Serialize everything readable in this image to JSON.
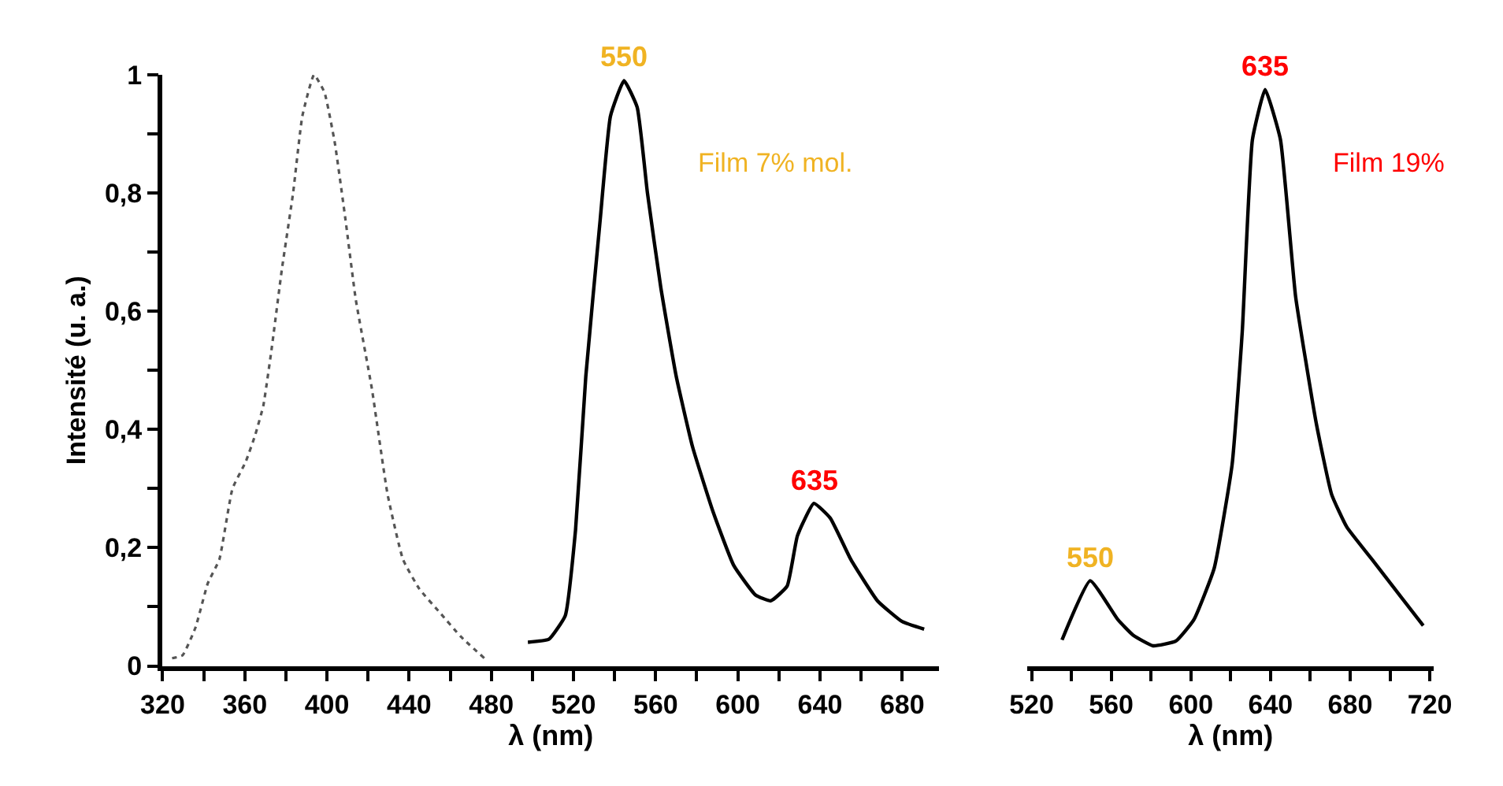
{
  "chart_data": [
    {
      "type": "line",
      "xlabel": "λ (nm)",
      "ylabel": "Intensité (u. a.)",
      "xlim": [
        320,
        698
      ],
      "xticks": [
        320,
        {
          "value": 340,
          "label": null
        },
        360,
        {
          "value": 380,
          "label": null
        },
        400,
        {
          "value": 420,
          "label": null
        },
        440,
        {
          "value": 460,
          "label": null
        },
        480,
        {
          "value": 500,
          "label": null
        },
        520,
        {
          "value": 540,
          "label": null
        },
        560,
        {
          "value": 580,
          "label": null
        },
        600,
        {
          "value": 620,
          "label": null
        },
        640,
        {
          "value": 660,
          "label": null
        },
        680
      ],
      "ylim": [
        0,
        1
      ],
      "yticks": [
        {
          "value": 0,
          "label": "0"
        },
        {
          "value": 0.1,
          "label": null
        },
        {
          "value": 0.2,
          "label": "0,2"
        },
        {
          "value": 0.3,
          "label": null
        },
        {
          "value": 0.4,
          "label": "0,4"
        },
        {
          "value": 0.5,
          "label": null
        },
        {
          "value": 0.6,
          "label": "0,6"
        },
        {
          "value": 0.7,
          "label": null
        },
        {
          "value": 0.8,
          "label": "0,8"
        },
        {
          "value": 0.9,
          "label": null
        },
        {
          "value": 1,
          "label": "1"
        }
      ],
      "series": [
        {
          "color": "#555555",
          "line_style": "dotted",
          "x": [
            324.6,
            329.7,
            336,
            342,
            347.6,
            354,
            360.4,
            365,
            369,
            373,
            378,
            383.5,
            388,
            393.7,
            398.8,
            403.8,
            409,
            414,
            421.8,
            429.5,
            437,
            445,
            455,
            465,
            476.6
          ],
          "values": [
            0.013,
            0.018,
            0.065,
            0.14,
            0.18,
            0.3,
            0.345,
            0.39,
            0.44,
            0.535,
            0.67,
            0.8,
            0.93,
            1.0,
            0.97,
            0.885,
            0.755,
            0.62,
            0.47,
            0.29,
            0.18,
            0.13,
            0.09,
            0.05,
            0.013
          ]
        },
        {
          "color": "#000000",
          "line_style": "solid",
          "x": [
            497.8,
            508,
            516,
            521,
            526,
            533,
            538,
            544.6,
            551,
            556,
            562.5,
            570,
            578,
            588,
            598,
            608.6,
            616,
            624,
            629,
            637,
            645,
            655,
            668,
            680,
            690.7
          ],
          "values": [
            0.04,
            0.045,
            0.085,
            0.23,
            0.49,
            0.755,
            0.93,
            0.99,
            0.945,
            0.8,
            0.64,
            0.49,
            0.37,
            0.26,
            0.17,
            0.12,
            0.11,
            0.135,
            0.22,
            0.275,
            0.25,
            0.18,
            0.11,
            0.075,
            0.062
          ]
        }
      ],
      "annotations": [
        {
          "text": "550",
          "x": 544.6,
          "y": 0.99
        },
        {
          "text": "635",
          "x": 637,
          "y": 0.275
        },
        "Film 7% mol."
      ]
    },
    {
      "type": "line",
      "xlabel": "λ (nm)",
      "tick_labels": "x",
      "xlim": [
        518,
        722
      ],
      "xticks": [
        520,
        {
          "value": 540,
          "label": null
        },
        560,
        {
          "value": 580,
          "label": null
        },
        600,
        {
          "value": 620,
          "label": null
        },
        640,
        {
          "value": 660,
          "label": null
        },
        680,
        {
          "value": 700,
          "label": null
        },
        720
      ],
      "ylim": [
        0,
        1
      ],
      "series": [
        {
          "color": "#000000",
          "line_style": "solid",
          "x": [
            535.3,
            549.4,
            563.4,
            571,
            581,
            592.5,
            601.5,
            611.7,
            620.7,
            625.8,
            630.9,
            637.3,
            645,
            652.6,
            663,
            670.7,
            678.3,
            691,
            716.7
          ],
          "values": [
            0.044,
            0.144,
            0.078,
            0.052,
            0.034,
            0.042,
            0.078,
            0.165,
            0.34,
            0.565,
            0.89,
            0.975,
            0.89,
            0.625,
            0.41,
            0.29,
            0.235,
            0.18,
            0.068
          ]
        }
      ],
      "annotations": [
        {
          "text": "635",
          "x": 637.3,
          "y": 0.975
        },
        {
          "text": "550",
          "x": 549.4,
          "y": 0.144
        },
        "Film 19%"
      ]
    }
  ]
}
